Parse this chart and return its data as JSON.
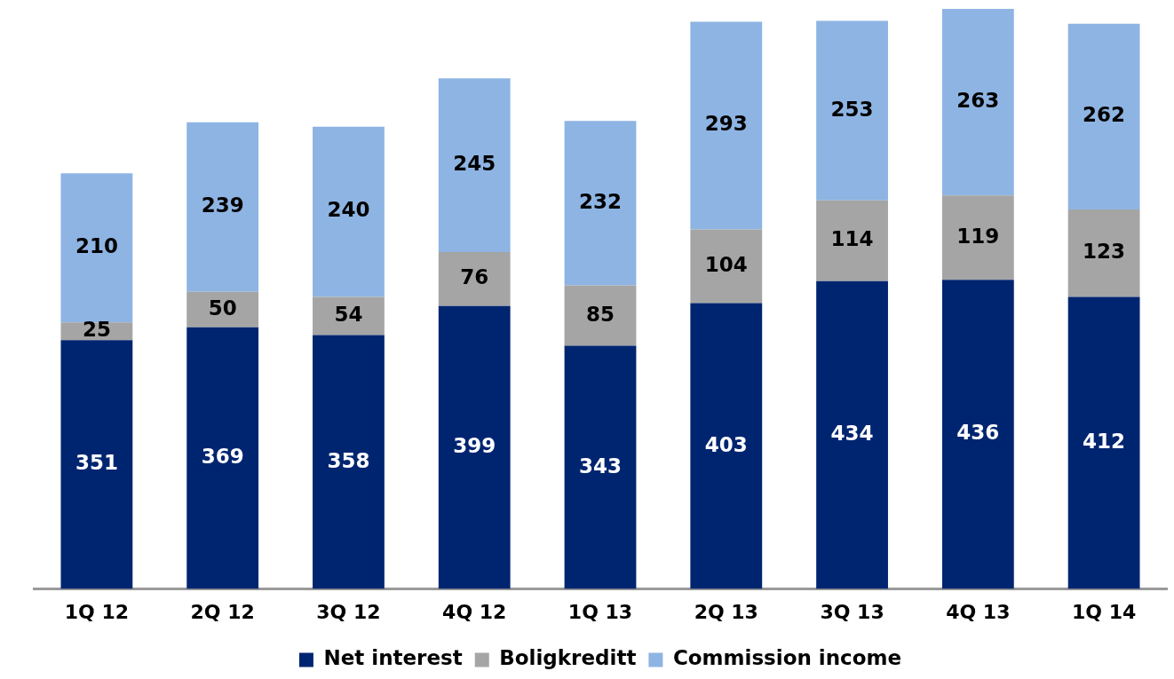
{
  "chart_data": {
    "type": "bar",
    "stacked": true,
    "data_labels": true,
    "legend": "bottom",
    "grid": false,
    "categories": [
      "1Q 12",
      "2Q 12",
      "3Q 12",
      "4Q 12",
      "1Q 13",
      "2Q 13",
      "3Q 13",
      "4Q 13",
      "1Q 14"
    ],
    "series": [
      {
        "name": "Net interest",
        "color": "#002570",
        "values": [
          351,
          369,
          358,
          399,
          343,
          403,
          434,
          436,
          412
        ]
      },
      {
        "name": "Boligkreditt",
        "color": "#a5a5a5",
        "values": [
          25,
          50,
          54,
          76,
          85,
          104,
          114,
          119,
          123
        ]
      },
      {
        "name": "Commission income",
        "color": "#8eb4e3",
        "values": [
          210,
          239,
          240,
          245,
          232,
          293,
          253,
          263,
          262
        ]
      }
    ]
  }
}
